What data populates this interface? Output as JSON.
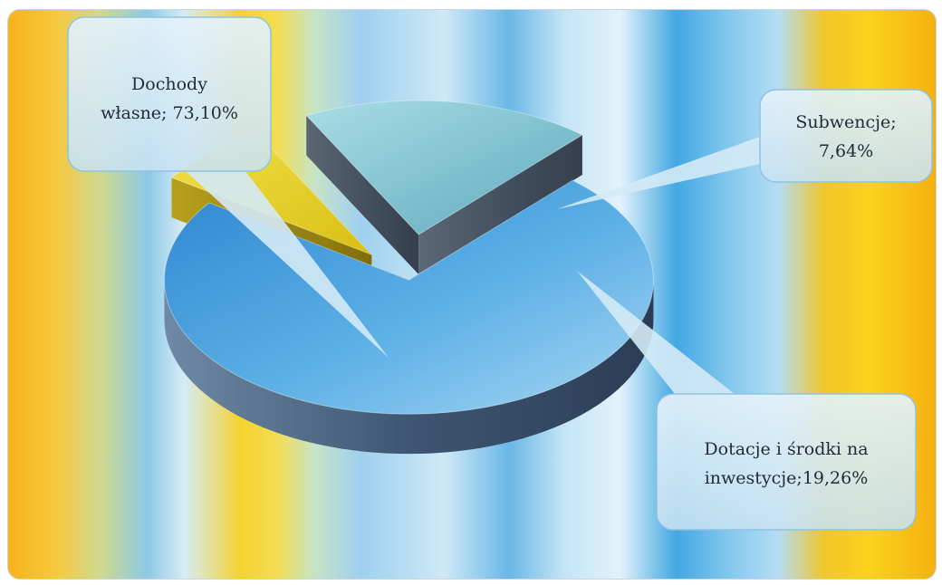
{
  "chart_data": {
    "type": "pie",
    "style": "3d-exploded",
    "title": "",
    "slices": [
      {
        "name": "Dochody własne",
        "value": 73.1,
        "label_lines": [
          "Dochody",
          "własne; 73,10%"
        ],
        "color": "#3f95d6"
      },
      {
        "name": "Subwencje",
        "value": 7.64,
        "label_lines": [
          "Subwencje;",
          "7,64%"
        ],
        "color": "#e8d21e"
      },
      {
        "name": "Dotacje i środki na inwestycje",
        "value": 19.26,
        "label_lines": [
          "Dotacje i środki na",
          "inwestycje;19,26%"
        ],
        "color": "#86c4cf"
      }
    ],
    "legend": "none"
  }
}
